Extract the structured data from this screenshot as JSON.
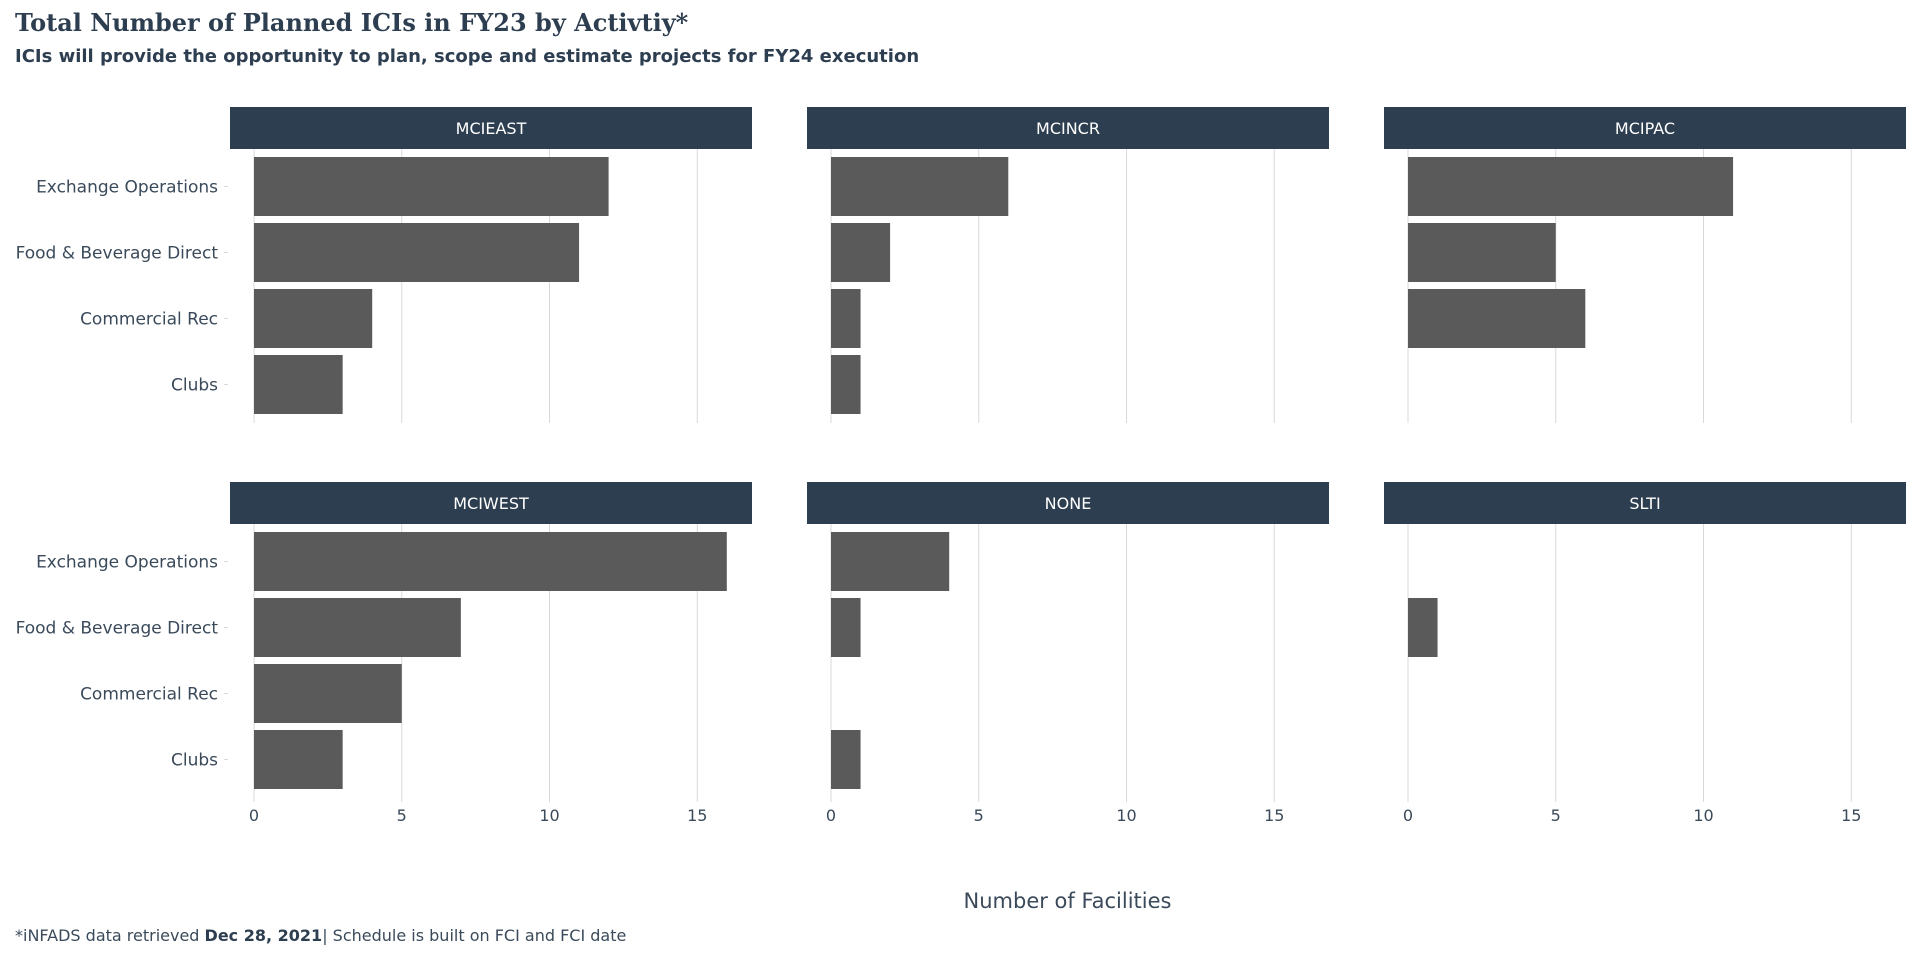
{
  "title": "Total Number of Planned ICIs in FY23 by Activtiy*",
  "subtitle": "ICIs will provide the opportunity to plan, scope and estimate projects for FY24 execution",
  "caption": {
    "prefix": "*iNFADS data retrieved ",
    "date": "Dec 28, 2021",
    "suffix": "| Schedule is built on FCI and FCI date"
  },
  "colors": {
    "bar": "#5a5a5a",
    "strip": "#2d3e50",
    "grid": "#d9d9d9",
    "text": "#3a4a5a"
  },
  "chart_data": {
    "type": "bar",
    "orientation": "horizontal",
    "facet": true,
    "xlabel": "Number of Facilities",
    "xlim": [
      0,
      17
    ],
    "xticks": [
      0,
      5,
      10,
      15
    ],
    "grid": true,
    "categories": [
      "Exchange Operations",
      "Food & Beverage Direct",
      "Commercial Rec",
      "Clubs"
    ],
    "panels": [
      {
        "name": "MCIEAST",
        "values": [
          12,
          11,
          4,
          3
        ]
      },
      {
        "name": "MCINCR",
        "values": [
          6,
          2,
          1,
          1
        ]
      },
      {
        "name": "MCIPAC",
        "values": [
          11,
          5,
          6,
          0
        ]
      },
      {
        "name": "MCIWEST",
        "values": [
          16,
          7,
          5,
          3
        ]
      },
      {
        "name": "NONE",
        "values": [
          4,
          1,
          0,
          1
        ]
      },
      {
        "name": "SLTI",
        "values": [
          0,
          1,
          0,
          0
        ]
      }
    ]
  }
}
